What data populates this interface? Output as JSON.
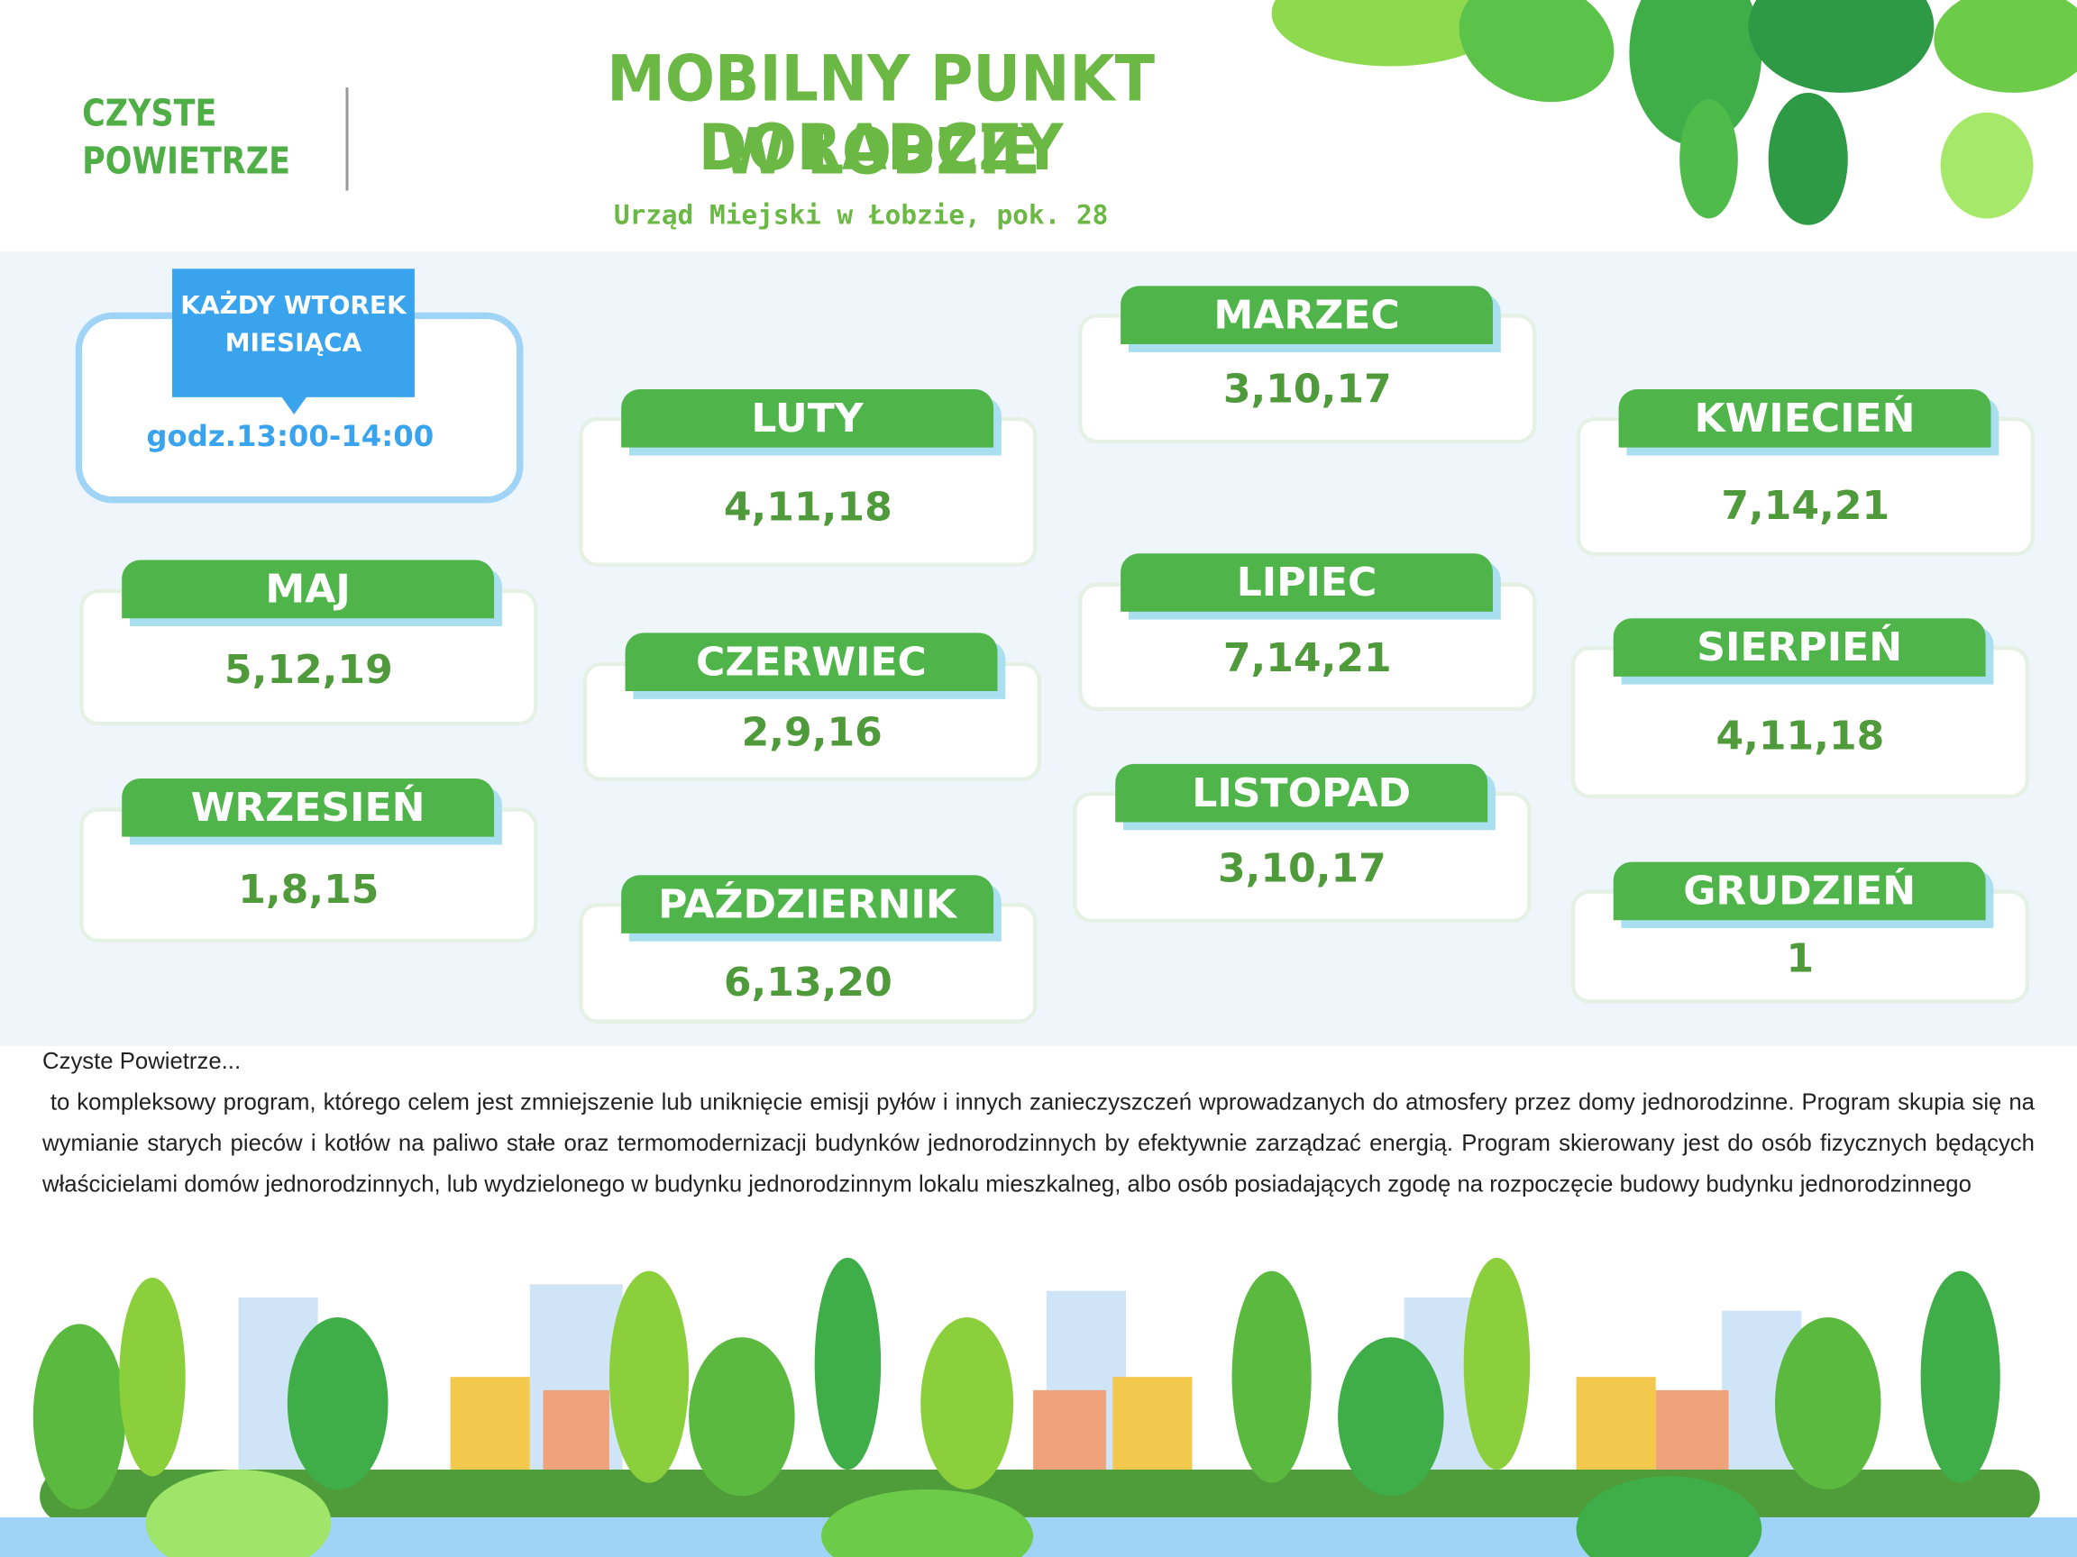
{
  "logo": [
    "CZYSTE",
    "POWIETRZE"
  ],
  "title": [
    "MOBILNY PUNKT DORADCZY",
    "W ŁOBZIE"
  ],
  "subtitle": "Urząd Miejski w Łobzie, pok. 28",
  "schedule": {
    "label": [
      "KAŻDY WTOREK",
      "MIESIĄCA"
    ],
    "hours": "godz.13:00-14:00"
  },
  "months": [
    {
      "name": "LUTY",
      "dates": "4,11,18"
    },
    {
      "name": "MARZEC",
      "dates": "3,10,17"
    },
    {
      "name": "KWIECIEŃ",
      "dates": "7,14,21"
    },
    {
      "name": "MAJ",
      "dates": "5,12,19"
    },
    {
      "name": "CZERWIEC",
      "dates": "2,9,16"
    },
    {
      "name": "LIPIEC",
      "dates": "7,14,21"
    },
    {
      "name": "SIERPIEŃ",
      "dates": "4,11,18"
    },
    {
      "name": "WRZESIEŃ",
      "dates": "1,8,15"
    },
    {
      "name": "PAŹDZIERNIK",
      "dates": "6,13,20"
    },
    {
      "name": "LISTOPAD",
      "dates": "3,10,17"
    },
    {
      "name": "GRUDZIEŃ",
      "dates": "1"
    }
  ],
  "description": {
    "heading": "Czyste Powietrze...",
    "text": "to kompleksowy program, którego celem jest zmniejszenie lub uniknięcie emisji pyłów i innych zanieczyszczeń wprowadzanych do atmosfery przez domy jednorodzinne. Program skupia się na wymianie starych pieców i kotłów na paliwo stałe oraz termomodernizacji budynków jednorodzinnych by efektywnie zarządzać energią. Program skierowany jest do osób fizycznych będących właścicielami domów jednorodzinnych, lub wydzielonego w budynku jednorodzinnym lokalu mieszkalneg, albo osób posiadających zgodę na rozpoczęcie budowy budynku jednorodzinnego"
  }
}
